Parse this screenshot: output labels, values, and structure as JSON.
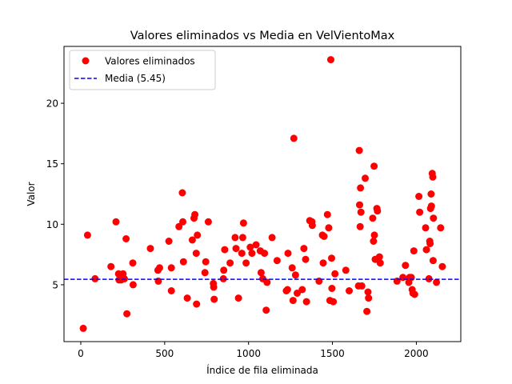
{
  "chart_data": {
    "type": "scatter",
    "title": "Valores eliminados vs Media en VelVientoMax",
    "xlabel": "Índice de fila eliminada",
    "ylabel": "Valor",
    "xlim": [
      -100,
      2265
    ],
    "ylim": [
      0.3,
      24.7
    ],
    "xticks": [
      0,
      500,
      1000,
      1500,
      2000
    ],
    "yticks": [
      5,
      10,
      15,
      20
    ],
    "grid": false,
    "legend_position": "top-left",
    "colors": {
      "points": "#ff0000",
      "mean_line": "#0000ff"
    },
    "mean_line": {
      "label": "Media (5.45)",
      "value": 5.45
    },
    "series": [
      {
        "name": "Valores eliminados",
        "points": [
          [
            15,
            1.4
          ],
          [
            40,
            9.1
          ],
          [
            85,
            5.5
          ],
          [
            180,
            6.5
          ],
          [
            210,
            10.2
          ],
          [
            225,
            5.9
          ],
          [
            228,
            5.4
          ],
          [
            240,
            5.4
          ],
          [
            252,
            5.9
          ],
          [
            260,
            5.5
          ],
          [
            270,
            8.8
          ],
          [
            275,
            2.6
          ],
          [
            310,
            6.8
          ],
          [
            312,
            5.0
          ],
          [
            415,
            8.0
          ],
          [
            460,
            6.2
          ],
          [
            462,
            5.3
          ],
          [
            470,
            6.4
          ],
          [
            525,
            8.6
          ],
          [
            540,
            6.4
          ],
          [
            540,
            4.5
          ],
          [
            585,
            9.8
          ],
          [
            605,
            12.6
          ],
          [
            608,
            10.2
          ],
          [
            612,
            6.9
          ],
          [
            635,
            3.9
          ],
          [
            665,
            8.7
          ],
          [
            675,
            10.5
          ],
          [
            680,
            10.8
          ],
          [
            690,
            3.4
          ],
          [
            688,
            7.6
          ],
          [
            695,
            9.1
          ],
          [
            740,
            6.0
          ],
          [
            745,
            6.9
          ],
          [
            760,
            10.2
          ],
          [
            790,
            5.1
          ],
          [
            792,
            4.8
          ],
          [
            795,
            3.8
          ],
          [
            850,
            5.5
          ],
          [
            852,
            6.2
          ],
          [
            858,
            7.9
          ],
          [
            890,
            6.8
          ],
          [
            920,
            8.9
          ],
          [
            925,
            8.0
          ],
          [
            940,
            3.9
          ],
          [
            960,
            7.6
          ],
          [
            965,
            8.9
          ],
          [
            970,
            10.1
          ],
          [
            985,
            6.8
          ],
          [
            1010,
            8.1
          ],
          [
            1020,
            7.6
          ],
          [
            1045,
            8.3
          ],
          [
            1070,
            7.8
          ],
          [
            1075,
            6.0
          ],
          [
            1085,
            5.5
          ],
          [
            1095,
            7.6
          ],
          [
            1105,
            2.9
          ],
          [
            1110,
            5.2
          ],
          [
            1140,
            8.9
          ],
          [
            1170,
            7.0
          ],
          [
            1225,
            4.5
          ],
          [
            1232,
            4.6
          ],
          [
            1235,
            7.6
          ],
          [
            1260,
            6.4
          ],
          [
            1265,
            3.7
          ],
          [
            1270,
            17.1
          ],
          [
            1280,
            5.8
          ],
          [
            1290,
            4.3
          ],
          [
            1320,
            4.6
          ],
          [
            1330,
            8.0
          ],
          [
            1340,
            7.1
          ],
          [
            1345,
            3.6
          ],
          [
            1365,
            10.3
          ],
          [
            1378,
            10.2
          ],
          [
            1380,
            9.9
          ],
          [
            1420,
            5.3
          ],
          [
            1440,
            9.1
          ],
          [
            1445,
            6.8
          ],
          [
            1450,
            9.0
          ],
          [
            1470,
            10.8
          ],
          [
            1478,
            9.7
          ],
          [
            1485,
            3.7
          ],
          [
            1490,
            23.6
          ],
          [
            1495,
            7.2
          ],
          [
            1497,
            4.7
          ],
          [
            1505,
            3.6
          ],
          [
            1515,
            5.9
          ],
          [
            1580,
            6.2
          ],
          [
            1600,
            4.5
          ],
          [
            1655,
            4.9
          ],
          [
            1660,
            16.1
          ],
          [
            1662,
            11.6
          ],
          [
            1665,
            9.8
          ],
          [
            1667,
            13.0
          ],
          [
            1670,
            11.0
          ],
          [
            1675,
            4.9
          ],
          [
            1695,
            13.8
          ],
          [
            1705,
            2.8
          ],
          [
            1712,
            4.4
          ],
          [
            1715,
            3.9
          ],
          [
            1740,
            10.5
          ],
          [
            1745,
            8.6
          ],
          [
            1748,
            14.8
          ],
          [
            1750,
            9.1
          ],
          [
            1755,
            7.1
          ],
          [
            1765,
            11.3
          ],
          [
            1768,
            11.1
          ],
          [
            1780,
            7.3
          ],
          [
            1785,
            6.8
          ],
          [
            1885,
            5.3
          ],
          [
            1920,
            5.6
          ],
          [
            1935,
            6.6
          ],
          [
            1955,
            5.2
          ],
          [
            1960,
            5.6
          ],
          [
            1970,
            5.6
          ],
          [
            1975,
            4.6
          ],
          [
            1980,
            4.3
          ],
          [
            1985,
            7.8
          ],
          [
            1990,
            4.2
          ],
          [
            2015,
            12.3
          ],
          [
            2020,
            11.0
          ],
          [
            2055,
            9.7
          ],
          [
            2060,
            7.9
          ],
          [
            2075,
            5.5
          ],
          [
            2080,
            8.6
          ],
          [
            2082,
            8.4
          ],
          [
            2085,
            11.3
          ],
          [
            2088,
            12.5
          ],
          [
            2090,
            11.5
          ],
          [
            2095,
            14.2
          ],
          [
            2098,
            13.9
          ],
          [
            2100,
            7.0
          ],
          [
            2102,
            10.5
          ],
          [
            2120,
            5.2
          ],
          [
            2145,
            9.7
          ],
          [
            2155,
            6.5
          ]
        ]
      }
    ]
  }
}
